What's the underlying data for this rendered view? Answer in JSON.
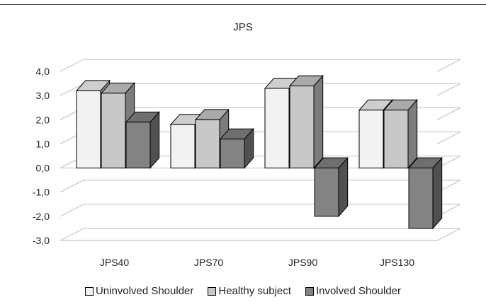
{
  "chart_data": {
    "type": "bar",
    "title": "JPS",
    "categories": [
      "JPS40",
      "JPS70",
      "JPS90",
      "JPS130"
    ],
    "series": [
      {
        "name": "Uninvolved Shoulder",
        "values": [
          3.2,
          1.8,
          3.3,
          2.4
        ],
        "color": "#f2f2f2"
      },
      {
        "name": "Healthy subject",
        "values": [
          3.1,
          2.0,
          3.4,
          2.4
        ],
        "color": "#c8c8c8"
      },
      {
        "name": "Involved Shoulder",
        "values": [
          1.9,
          1.2,
          -2.0,
          -2.5
        ],
        "color": "#838383"
      }
    ],
    "ylim": [
      -3,
      4
    ],
    "yticks": [
      "4,0",
      "3,0",
      "2,0",
      "1,0",
      "0,0",
      "-1,0",
      "-2,0",
      "-3,0"
    ],
    "ytick_values": [
      4,
      3,
      2,
      1,
      0,
      -1,
      -2,
      -3
    ],
    "grid": true,
    "legend_position": "bottom",
    "style": "3d-clustered-bar"
  }
}
